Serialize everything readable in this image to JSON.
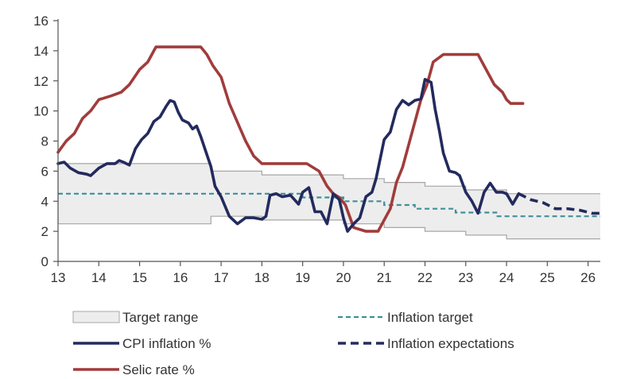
{
  "chart_data": {
    "type": "line",
    "xlim": [
      13,
      26.3
    ],
    "ylim": [
      0,
      16
    ],
    "x_ticks": [
      "13",
      "14",
      "15",
      "16",
      "17",
      "18",
      "19",
      "20",
      "21",
      "22",
      "23",
      "24",
      "25",
      "26"
    ],
    "y_ticks": [
      "0",
      "2",
      "4",
      "6",
      "8",
      "10",
      "12",
      "14",
      "16"
    ],
    "grid": false,
    "legend_position": "bottom",
    "colors": {
      "range_fill": "#ededed",
      "range_edge": "#a6a6a6",
      "target": "#3f8f99",
      "cpi": "#232a5e",
      "expectations": "#232a5e",
      "selic": "#a13c3c",
      "axis": "#555555"
    },
    "series": [
      {
        "name": "Target range",
        "kind": "band",
        "x": [
          13.0,
          16.75,
          16.75,
          18.0,
          18.0,
          19.0,
          19.0,
          20.0,
          20.0,
          21.0,
          21.0,
          22.0,
          22.0,
          23.0,
          23.0,
          24.0,
          24.0,
          26.3
        ],
        "lower": [
          2.5,
          2.5,
          3.0,
          3.0,
          2.75,
          2.75,
          2.75,
          2.75,
          2.5,
          2.5,
          2.25,
          2.25,
          2.0,
          2.0,
          1.75,
          1.75,
          1.5,
          1.5
        ],
        "upper": [
          6.5,
          6.5,
          6.0,
          6.0,
          5.75,
          5.75,
          5.75,
          5.75,
          5.5,
          5.5,
          5.25,
          5.25,
          5.0,
          5.0,
          4.75,
          4.75,
          4.5,
          4.5
        ]
      },
      {
        "name": "Inflation target",
        "kind": "dashed",
        "x": [
          13.0,
          17.75,
          17.75,
          19.0,
          19.0,
          20.0,
          20.0,
          21.0,
          21.0,
          21.75,
          21.75,
          22.75,
          22.75,
          23.75,
          23.75,
          26.3
        ],
        "y": [
          4.5,
          4.5,
          4.5,
          4.5,
          4.25,
          4.25,
          4.0,
          4.0,
          3.75,
          3.75,
          3.5,
          3.5,
          3.25,
          3.25,
          3.0,
          3.0
        ]
      },
      {
        "name": "CPI inflation %",
        "kind": "line",
        "x": [
          13.0,
          13.15,
          13.3,
          13.5,
          13.7,
          13.8,
          14.0,
          14.2,
          14.4,
          14.5,
          14.6,
          14.75,
          14.9,
          15.05,
          15.2,
          15.35,
          15.5,
          15.65,
          15.75,
          15.85,
          15.95,
          16.05,
          16.2,
          16.3,
          16.4,
          16.5,
          16.6,
          16.75,
          16.85,
          17.0,
          17.2,
          17.4,
          17.6,
          17.8,
          18.0,
          18.1,
          18.2,
          18.35,
          18.5,
          18.7,
          18.9,
          19.0,
          19.15,
          19.3,
          19.45,
          19.6,
          19.75,
          19.9,
          20.0,
          20.1,
          20.25,
          20.4,
          20.55,
          20.7,
          20.8,
          20.9,
          21.0,
          21.15,
          21.3,
          21.45,
          21.6,
          21.75,
          21.9,
          22.0,
          22.15,
          22.25,
          22.35,
          22.45,
          22.6,
          22.75,
          22.85,
          23.0,
          23.15,
          23.3,
          23.45,
          23.6,
          23.75,
          23.9,
          24.0,
          24.15,
          24.3
        ],
        "y": [
          6.5,
          6.6,
          6.2,
          5.9,
          5.8,
          5.7,
          6.2,
          6.5,
          6.5,
          6.7,
          6.6,
          6.4,
          7.5,
          8.1,
          8.5,
          9.3,
          9.6,
          10.3,
          10.7,
          10.6,
          9.9,
          9.4,
          9.2,
          8.8,
          9.0,
          8.3,
          7.5,
          6.3,
          5.0,
          4.3,
          3.0,
          2.5,
          2.9,
          2.9,
          2.8,
          3.0,
          4.4,
          4.5,
          4.3,
          4.4,
          3.8,
          4.6,
          4.9,
          3.3,
          3.3,
          2.5,
          4.5,
          4.1,
          2.9,
          2.0,
          2.5,
          2.9,
          4.3,
          4.6,
          5.5,
          6.8,
          8.1,
          8.6,
          10.1,
          10.7,
          10.4,
          10.7,
          10.8,
          12.1,
          11.9,
          10.1,
          8.7,
          7.2,
          6.0,
          5.9,
          5.7,
          4.6,
          4.0,
          3.2,
          4.6,
          5.2,
          4.6,
          4.6,
          4.5,
          3.8,
          4.5
        ]
      },
      {
        "name": "Inflation expectations",
        "kind": "dashed-bold",
        "x": [
          24.3,
          24.6,
          24.9,
          25.2,
          25.5,
          25.8,
          26.1,
          26.3
        ],
        "y": [
          4.5,
          4.1,
          3.9,
          3.5,
          3.5,
          3.4,
          3.2,
          3.2
        ]
      },
      {
        "name": "Selic rate %",
        "kind": "line",
        "x": [
          13.0,
          13.2,
          13.4,
          13.6,
          13.8,
          14.0,
          14.3,
          14.55,
          14.75,
          15.0,
          15.2,
          15.4,
          15.6,
          15.8,
          16.0,
          16.3,
          16.5,
          16.65,
          16.8,
          17.0,
          17.2,
          17.4,
          17.6,
          17.8,
          18.0,
          18.2,
          18.5,
          18.8,
          19.1,
          19.4,
          19.6,
          19.75,
          19.9,
          20.05,
          20.25,
          20.55,
          20.85,
          21.0,
          21.15,
          21.3,
          21.45,
          21.6,
          21.75,
          21.9,
          22.05,
          22.2,
          22.45,
          22.7,
          23.0,
          23.3,
          23.5,
          23.7,
          23.9,
          24.0,
          24.1,
          24.4
        ],
        "y": [
          7.25,
          8.0,
          8.5,
          9.5,
          10.0,
          10.75,
          11.0,
          11.25,
          11.75,
          12.75,
          13.25,
          14.25,
          14.25,
          14.25,
          14.25,
          14.25,
          14.25,
          13.75,
          13.0,
          12.25,
          10.5,
          9.25,
          8.0,
          7.0,
          6.5,
          6.5,
          6.5,
          6.5,
          6.5,
          6.0,
          5.0,
          4.5,
          4.25,
          3.75,
          2.25,
          2.0,
          2.0,
          2.75,
          3.5,
          5.25,
          6.25,
          7.75,
          9.25,
          10.75,
          11.75,
          13.25,
          13.75,
          13.75,
          13.75,
          13.75,
          12.75,
          11.75,
          11.25,
          10.75,
          10.5,
          10.5
        ]
      }
    ]
  },
  "legend": [
    {
      "label": "Target range",
      "kind": "band"
    },
    {
      "label": "Inflation target",
      "kind": "dashed"
    },
    {
      "label": "CPI inflation %",
      "kind": "line-cpi"
    },
    {
      "label": "Inflation expectations",
      "kind": "dashed-bold"
    },
    {
      "label": "Selic rate %",
      "kind": "line-selic"
    }
  ]
}
